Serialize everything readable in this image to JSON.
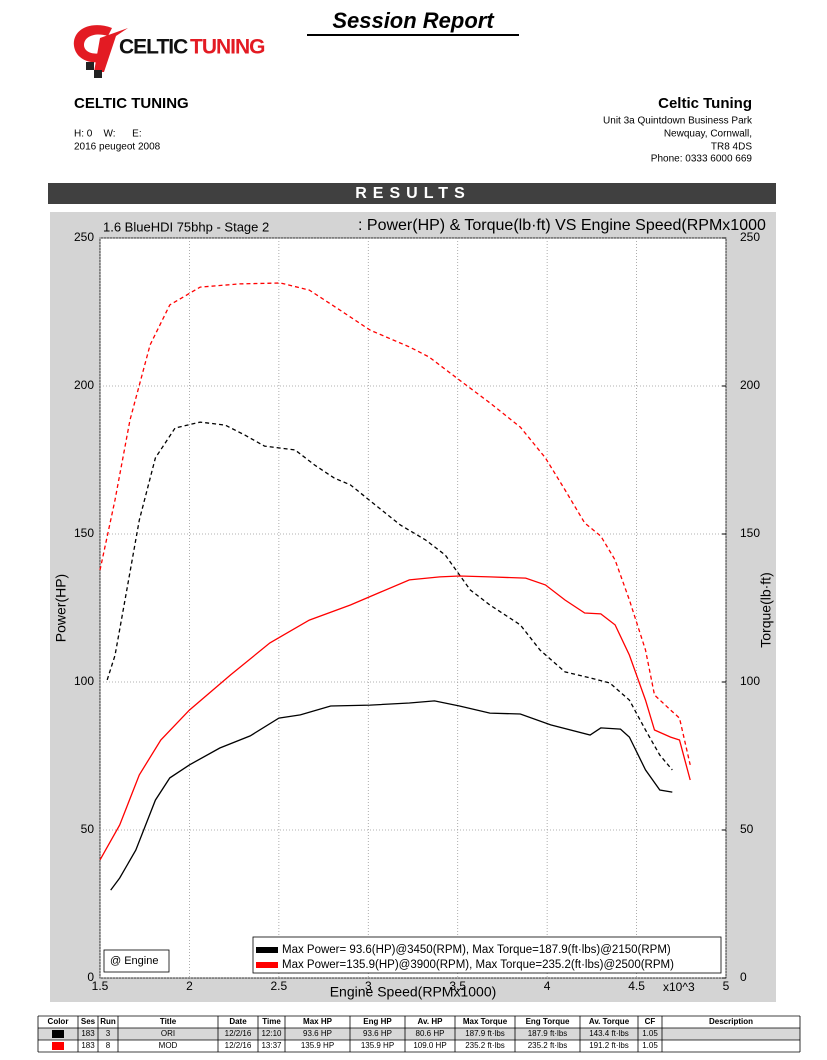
{
  "header": {
    "title": "Session Report",
    "logo": [
      "CELTIC",
      "TUNING"
    ],
    "left": [
      "CELTIC TUNING",
      "H: 0    W:      E:",
      "2016 peugeot 2008"
    ],
    "right": [
      "Celtic Tuning",
      "Unit 3a Quintdown Business Park",
      "Newquay, Cornwall,",
      "TR8 4DS",
      "Phone: 0333 6000 669"
    ],
    "section": "RESULTS"
  },
  "chart_data": {
    "type": "line",
    "subtitle": "1.6 BlueHDI 75bhp - Stage 2",
    "title": ": Power(HP) & Torque(lb·ft) VS Engine Speed(RPMx1000",
    "x_label": "Engine Speed(RPMx1000)",
    "x_multiplier": "x10^3",
    "y_label": "Power(HP)",
    "y2_label": "Torque(lb·ft)",
    "xlim": [
      1.5,
      5
    ],
    "xticks": [
      1.5,
      2,
      2.5,
      3,
      3.5,
      4,
      4.5,
      5
    ],
    "ylim": [
      0,
      250
    ],
    "yticks": [
      0,
      50,
      100,
      150,
      200,
      250
    ],
    "y2lim": [
      0,
      250
    ],
    "y2ticks": [
      0,
      50,
      100,
      150,
      200,
      250
    ],
    "grid": true,
    "badge": "@ Engine",
    "legend": [
      {
        "label": "Max Power= 93.6(HP)@3450(RPM), Max Torque=187.9(ft·lbs)@2150(RPM)",
        "color": "#000000"
      },
      {
        "label": "Max Power=135.9(HP)@3900(RPM), Max Torque=235.2(ft·lbs)@2500(RPM)",
        "color": "#ff0000"
      }
    ],
    "series": [
      {
        "color": "#ff0000",
        "dashed": true,
        "axis": "y2",
        "x": [
          1.5,
          1.584,
          1.668,
          1.78,
          1.89,
          2.06,
          2.28,
          2.51,
          2.67,
          2.84,
          3.01,
          3.23,
          3.34,
          3.51,
          3.68,
          3.85,
          3.99,
          4.1,
          4.21,
          4.3,
          4.38,
          4.46,
          4.55,
          4.6,
          4.69,
          4.74,
          4.8
        ],
        "values": [
          137.8,
          161.5,
          188.5,
          213.9,
          227.4,
          233.4,
          234.5,
          234.8,
          232.4,
          225.7,
          218.9,
          213.2,
          209.8,
          202,
          194.3,
          186.1,
          175.7,
          164.9,
          153.7,
          149.3,
          141.2,
          127.7,
          110.8,
          95.6,
          90.5,
          87.8,
          72
        ]
      },
      {
        "color": "#000000",
        "dashed": true,
        "axis": "y2",
        "x": [
          1.54,
          1.584,
          1.64,
          1.72,
          1.81,
          1.92,
          2.06,
          2.2,
          2.31,
          2.42,
          2.59,
          2.7,
          2.81,
          2.9,
          3.04,
          3.18,
          3.32,
          3.43,
          3.57,
          3.68,
          3.85,
          3.96,
          4.1,
          4.24,
          4.35,
          4.46,
          4.55,
          4.63,
          4.7
        ],
        "values": [
          100.7,
          109,
          127.7,
          154.7,
          175.7,
          185.8,
          187.8,
          186.8,
          183.4,
          179.7,
          178.4,
          173.3,
          168.9,
          166.6,
          159.8,
          153,
          148,
          142.9,
          131.1,
          126,
          119.3,
          110.8,
          103.4,
          101.4,
          99.7,
          93.9,
          83.8,
          75.3,
          70.3
        ]
      },
      {
        "color": "#ff0000",
        "dashed": false,
        "x": [
          1.5,
          1.61,
          1.72,
          1.84,
          2.0,
          2.23,
          2.45,
          2.67,
          2.9,
          3.07,
          3.23,
          3.4,
          3.51,
          3.68,
          3.88,
          3.99,
          4.1,
          4.21,
          4.3,
          4.38,
          4.46,
          4.55,
          4.6,
          4.69,
          4.74,
          4.8
        ],
        "values": [
          39.9,
          51.7,
          68.6,
          80.4,
          90.5,
          102.4,
          113.2,
          120.9,
          126,
          130.4,
          134.5,
          135.5,
          135.8,
          135.5,
          135.1,
          132.8,
          127.7,
          123.3,
          123,
          119.3,
          109.1,
          93.9,
          83.8,
          81.4,
          80.4,
          66.9
        ]
      },
      {
        "color": "#000000",
        "dashed": false,
        "x": [
          1.56,
          1.61,
          1.7,
          1.81,
          1.89,
          2.0,
          2.17,
          2.34,
          2.5,
          2.62,
          2.79,
          3.01,
          3.23,
          3.37,
          3.51,
          3.68,
          3.85,
          4.02,
          4.24,
          4.3,
          4.41,
          4.46,
          4.55,
          4.63,
          4.7
        ],
        "values": [
          29.7,
          33.8,
          43.2,
          60.1,
          67.6,
          72,
          77.7,
          81.8,
          87.8,
          88.9,
          91.9,
          92.2,
          92.9,
          93.6,
          91.9,
          89.5,
          89.2,
          85.5,
          82.1,
          84.5,
          84.1,
          81.4,
          70.3,
          63.5,
          62.8
        ]
      }
    ]
  },
  "table": {
    "header": [
      "Color",
      "Ses",
      "Run",
      "Title",
      "Date",
      "Time",
      "Max HP",
      "Eng HP",
      "Av. HP",
      "Max Torque",
      "Eng Torque",
      "Av. Torque",
      "CF",
      "Description"
    ],
    "rows": [
      {
        "color": "#000000",
        "cells": [
          "183",
          "3",
          "ORI",
          "12/2/16",
          "12:10",
          "93.6 HP",
          "93.6 HP",
          "80.6 HP",
          "187.9 ft·lbs",
          "187.9 ft·lbs",
          "143.4 ft·lbs",
          "1.05"
        ]
      },
      {
        "color": "#ff0000",
        "cells": [
          "183",
          "8",
          "MOD",
          "12/2/16",
          "13:37",
          "135.9 HP",
          "135.9 HP",
          "109.0 HP",
          "235.2 ft·lbs",
          "235.2 ft·lbs",
          "191.2 ft·lbs",
          "1.05"
        ]
      }
    ]
  }
}
